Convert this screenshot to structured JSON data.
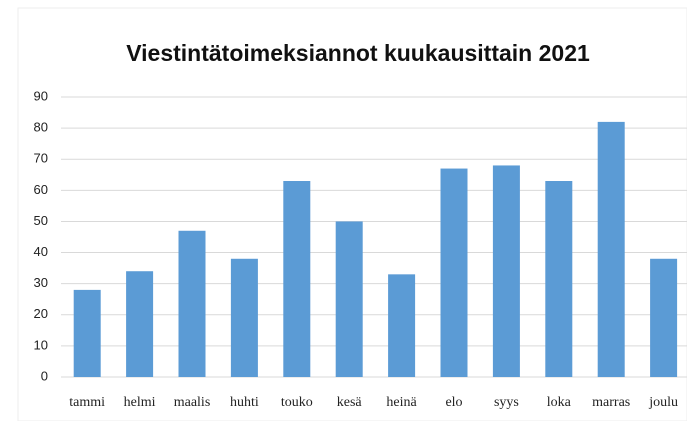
{
  "chart_data": {
    "type": "bar",
    "title": "Viestintätoimeksiannot kuukausittain 2021",
    "categories": [
      "tammi",
      "helmi",
      "maalis",
      "huhti",
      "touko",
      "kesä",
      "heinä",
      "elo",
      "syys",
      "loka",
      "marras",
      "joulu"
    ],
    "values": [
      28,
      34,
      47,
      38,
      63,
      50,
      33,
      67,
      68,
      63,
      82,
      38
    ],
    "color": "#5b9bd5",
    "ylim": [
      0,
      90
    ],
    "yticks": [
      0,
      10,
      20,
      30,
      40,
      50,
      60,
      70,
      80,
      90
    ],
    "grid": true
  }
}
